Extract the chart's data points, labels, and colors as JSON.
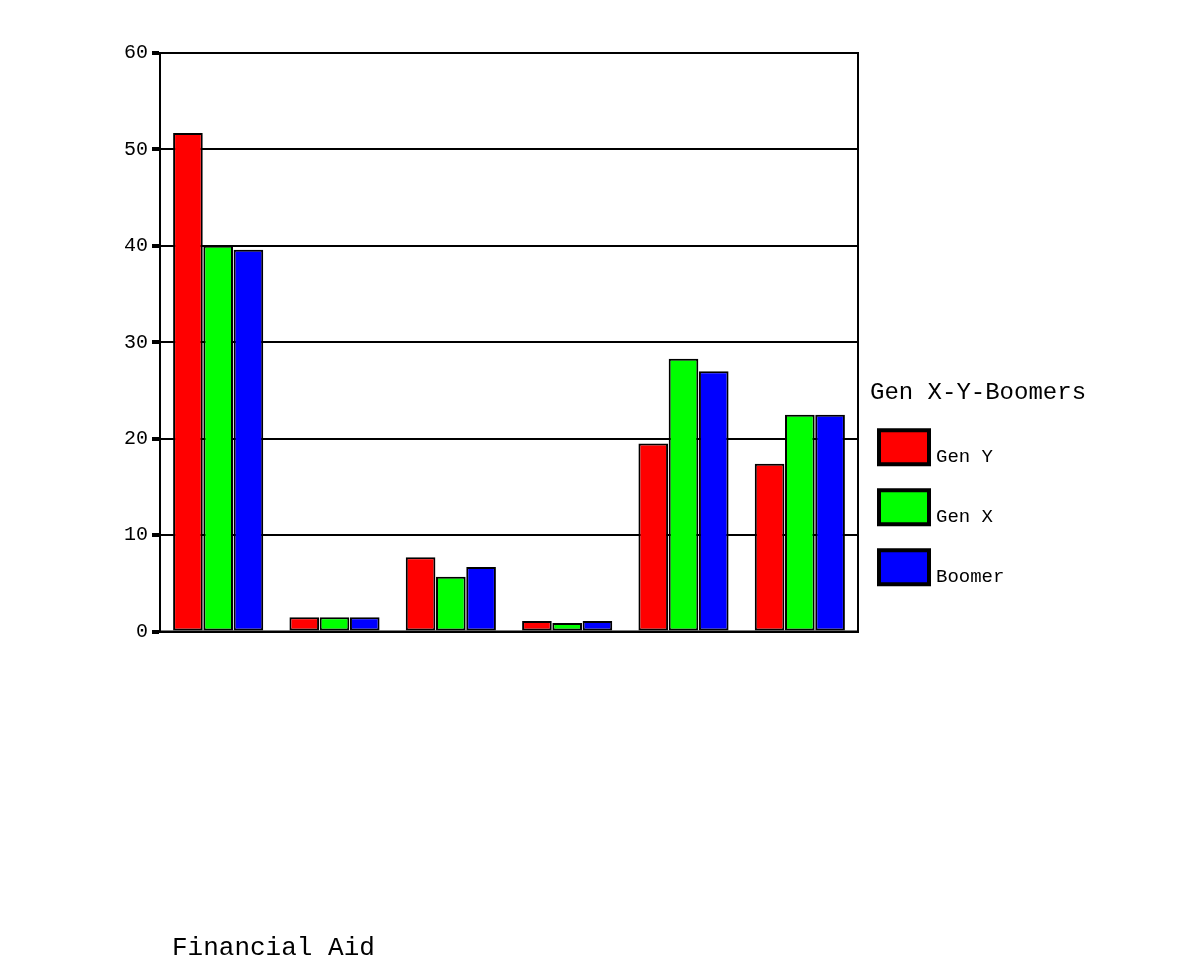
{
  "chart_data": {
    "type": "bar",
    "annotations": [
      "Financial Aid"
    ],
    "legend_title": "Gen X-Y-Boomers",
    "categories": [
      null,
      null,
      null,
      null,
      null,
      null
    ],
    "series": [
      {
        "name": "Gen Y",
        "color": "#ff0000",
        "values": [
          51.7,
          1.5,
          7.7,
          1.1,
          19.5,
          17.4
        ]
      },
      {
        "name": "Gen X",
        "color": "#00ff00",
        "values": [
          40,
          1.5,
          5.7,
          0.9,
          28.3,
          22.5
        ]
      },
      {
        "name": "Boomer",
        "color": "#0000ff",
        "values": [
          39.6,
          1.5,
          6.7,
          1.1,
          27,
          22.5
        ]
      }
    ],
    "ylim": [
      0,
      60
    ],
    "yticks": [
      0,
      10,
      20,
      30,
      40,
      50,
      60
    ],
    "grid": "y",
    "legend": "right"
  }
}
